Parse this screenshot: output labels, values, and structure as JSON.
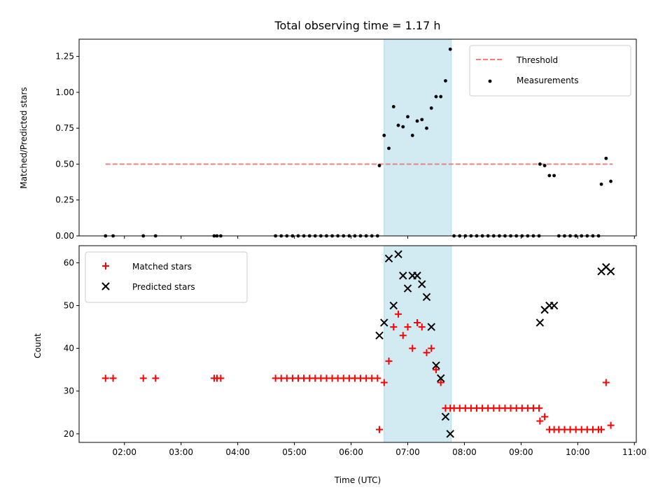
{
  "chart_data": [
    {
      "type": "scatter",
      "title": "Total observing time = 1.17 h",
      "xlabel": "",
      "ylabel": "Matched/Predicted stars",
      "xlim": [
        "01:12",
        "11:02"
      ],
      "ylim": [
        0,
        1.37
      ],
      "yticks": [
        "0.00",
        "0.25",
        "0.50",
        "0.75",
        "1.00",
        "1.25"
      ],
      "yticks_values": [
        0,
        0.25,
        0.5,
        0.75,
        1.0,
        1.25
      ],
      "xticks_values": [
        "02:00",
        "03:00",
        "04:00",
        "05:00",
        "06:00",
        "07:00",
        "08:00",
        "09:00",
        "10:00",
        "11:00"
      ],
      "shaded_span": {
        "x_start": "06:35",
        "x_end": "07:46",
        "color": "#add8e6"
      },
      "legend_position": "upper right",
      "threshold": {
        "name": "Threshold",
        "y": 0.5,
        "x_start": "01:40",
        "x_end": "10:37",
        "color": "#f08080",
        "style": "dashed"
      },
      "series": [
        {
          "name": "Measurements",
          "color": "#000000",
          "marker": "dot",
          "points": [
            [
              "01:40",
              0
            ],
            [
              "01:48",
              0
            ],
            [
              "02:20",
              0
            ],
            [
              "02:33",
              0
            ],
            [
              "03:35",
              0
            ],
            [
              "03:38",
              0
            ],
            [
              "03:42",
              0
            ],
            [
              "04:40",
              0
            ],
            [
              "04:46",
              0
            ],
            [
              "04:52",
              0
            ],
            [
              "04:58",
              0
            ],
            [
              "05:04",
              0
            ],
            [
              "05:10",
              0
            ],
            [
              "05:16",
              0
            ],
            [
              "05:22",
              0
            ],
            [
              "05:28",
              0
            ],
            [
              "05:34",
              0
            ],
            [
              "05:40",
              0
            ],
            [
              "05:46",
              0
            ],
            [
              "05:52",
              0
            ],
            [
              "05:58",
              0
            ],
            [
              "06:04",
              0
            ],
            [
              "06:10",
              0
            ],
            [
              "06:16",
              0
            ],
            [
              "06:22",
              0
            ],
            [
              "06:28",
              0
            ],
            [
              "07:49",
              0
            ],
            [
              "07:55",
              0
            ],
            [
              "08:01",
              0
            ],
            [
              "08:07",
              0
            ],
            [
              "08:13",
              0
            ],
            [
              "08:19",
              0
            ],
            [
              "08:25",
              0
            ],
            [
              "08:31",
              0
            ],
            [
              "08:37",
              0
            ],
            [
              "08:43",
              0
            ],
            [
              "08:49",
              0
            ],
            [
              "08:55",
              0
            ],
            [
              "09:01",
              0
            ],
            [
              "09:07",
              0
            ],
            [
              "09:13",
              0
            ],
            [
              "09:19",
              0
            ],
            [
              "09:40",
              0
            ],
            [
              "09:46",
              0
            ],
            [
              "09:52",
              0
            ],
            [
              "09:58",
              0
            ],
            [
              "10:04",
              0
            ],
            [
              "10:10",
              0
            ],
            [
              "10:16",
              0
            ],
            [
              "10:22",
              0
            ],
            [
              "06:30",
              0.49
            ],
            [
              "06:35",
              0.7
            ],
            [
              "06:40",
              0.61
            ],
            [
              "06:45",
              0.9
            ],
            [
              "06:50",
              0.77
            ],
            [
              "06:55",
              0.76
            ],
            [
              "07:00",
              0.83
            ],
            [
              "07:05",
              0.7
            ],
            [
              "07:10",
              0.8
            ],
            [
              "07:15",
              0.81
            ],
            [
              "07:20",
              0.75
            ],
            [
              "07:25",
              0.89
            ],
            [
              "07:30",
              0.97
            ],
            [
              "07:35",
              0.97
            ],
            [
              "07:40",
              1.08
            ],
            [
              "07:45",
              1.3
            ],
            [
              "09:20",
              0.5
            ],
            [
              "09:25",
              0.49
            ],
            [
              "09:30",
              0.42
            ],
            [
              "09:35",
              0.42
            ],
            [
              "10:25",
              0.36
            ],
            [
              "10:30",
              0.54
            ],
            [
              "10:35",
              0.38
            ]
          ]
        }
      ]
    },
    {
      "type": "scatter",
      "title": "",
      "xlabel": "Time (UTC)",
      "ylabel": "Count",
      "xlim": [
        "01:12",
        "11:02"
      ],
      "ylim": [
        18,
        64
      ],
      "yticks": [
        "20",
        "30",
        "40",
        "50",
        "60"
      ],
      "yticks_values": [
        20,
        30,
        40,
        50,
        60
      ],
      "xticks": [
        "02:00",
        "03:00",
        "04:00",
        "05:00",
        "06:00",
        "07:00",
        "08:00",
        "09:00",
        "10:00",
        "11:00"
      ],
      "xticks_values": [
        "02:00",
        "03:00",
        "04:00",
        "05:00",
        "06:00",
        "07:00",
        "08:00",
        "09:00",
        "10:00",
        "11:00"
      ],
      "shaded_span": {
        "x_start": "06:35",
        "x_end": "07:46",
        "color": "#add8e6"
      },
      "legend_position": "upper left",
      "series": [
        {
          "name": "Matched stars",
          "color": "#ff0000",
          "marker": "plus",
          "points": [
            [
              "01:40",
              33
            ],
            [
              "01:48",
              33
            ],
            [
              "02:20",
              33
            ],
            [
              "02:33",
              33
            ],
            [
              "03:35",
              33
            ],
            [
              "03:38",
              33
            ],
            [
              "03:42",
              33
            ],
            [
              "04:40",
              33
            ],
            [
              "04:46",
              33
            ],
            [
              "04:52",
              33
            ],
            [
              "04:58",
              33
            ],
            [
              "05:04",
              33
            ],
            [
              "05:10",
              33
            ],
            [
              "05:16",
              33
            ],
            [
              "05:22",
              33
            ],
            [
              "05:28",
              33
            ],
            [
              "05:34",
              33
            ],
            [
              "05:40",
              33
            ],
            [
              "05:46",
              33
            ],
            [
              "05:52",
              33
            ],
            [
              "05:58",
              33
            ],
            [
              "06:04",
              33
            ],
            [
              "06:10",
              33
            ],
            [
              "06:16",
              33
            ],
            [
              "06:22",
              33
            ],
            [
              "06:28",
              33
            ],
            [
              "06:30",
              21
            ],
            [
              "06:35",
              32
            ],
            [
              "06:40",
              37
            ],
            [
              "06:45",
              45
            ],
            [
              "06:50",
              48
            ],
            [
              "06:55",
              43
            ],
            [
              "07:00",
              45
            ],
            [
              "07:05",
              40
            ],
            [
              "07:10",
              46
            ],
            [
              "07:15",
              45
            ],
            [
              "07:20",
              39
            ],
            [
              "07:25",
              40
            ],
            [
              "07:30",
              35
            ],
            [
              "07:35",
              32
            ],
            [
              "07:40",
              26
            ],
            [
              "07:45",
              26
            ],
            [
              "07:49",
              26
            ],
            [
              "07:55",
              26
            ],
            [
              "08:01",
              26
            ],
            [
              "08:07",
              26
            ],
            [
              "08:13",
              26
            ],
            [
              "08:19",
              26
            ],
            [
              "08:25",
              26
            ],
            [
              "08:31",
              26
            ],
            [
              "08:37",
              26
            ],
            [
              "08:43",
              26
            ],
            [
              "08:49",
              26
            ],
            [
              "08:55",
              26
            ],
            [
              "09:01",
              26
            ],
            [
              "09:07",
              26
            ],
            [
              "09:13",
              26
            ],
            [
              "09:19",
              26
            ],
            [
              "09:20",
              23
            ],
            [
              "09:25",
              24
            ],
            [
              "09:30",
              21
            ],
            [
              "09:35",
              21
            ],
            [
              "09:40",
              21
            ],
            [
              "09:46",
              21
            ],
            [
              "09:52",
              21
            ],
            [
              "09:58",
              21
            ],
            [
              "10:04",
              21
            ],
            [
              "10:10",
              21
            ],
            [
              "10:16",
              21
            ],
            [
              "10:22",
              21
            ],
            [
              "10:25",
              21
            ],
            [
              "10:30",
              32
            ],
            [
              "10:35",
              22
            ]
          ]
        },
        {
          "name": "Predicted stars",
          "color": "#000000",
          "marker": "x",
          "points": [
            [
              "06:30",
              43
            ],
            [
              "06:35",
              46
            ],
            [
              "06:40",
              61
            ],
            [
              "06:45",
              50
            ],
            [
              "06:50",
              62
            ],
            [
              "06:55",
              57
            ],
            [
              "07:00",
              54
            ],
            [
              "07:05",
              57
            ],
            [
              "07:10",
              57
            ],
            [
              "07:15",
              55
            ],
            [
              "07:20",
              52
            ],
            [
              "07:25",
              45
            ],
            [
              "07:30",
              36
            ],
            [
              "07:35",
              33
            ],
            [
              "07:40",
              24
            ],
            [
              "07:45",
              20
            ],
            [
              "09:20",
              46
            ],
            [
              "09:25",
              49
            ],
            [
              "09:30",
              50
            ],
            [
              "09:35",
              50
            ],
            [
              "10:25",
              58
            ],
            [
              "10:30",
              59
            ],
            [
              "10:35",
              58
            ]
          ]
        }
      ]
    }
  ]
}
